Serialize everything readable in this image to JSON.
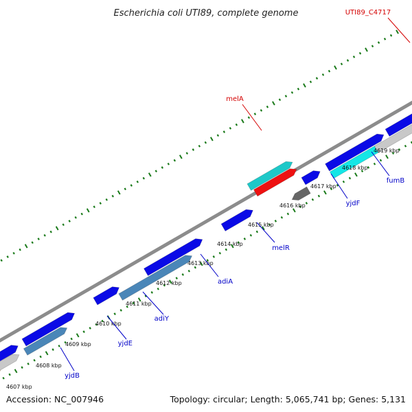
{
  "title": "Escherichia coli UTI89, complete genome",
  "footer": {
    "accession": "Accession: NC_007946",
    "summary": "Topology: circular; Length: 5,065,741 bp; Genes: 5,131"
  },
  "colors": {
    "backbone": "#8c8c8c",
    "tick": "#1a7a1a",
    "gene_blue": "#0a0ae6",
    "gene_steel": "#4a86b8",
    "gene_cyan": "#14e6e6",
    "gene_teal": "#1ec8c8",
    "gene_red": "#ee1111",
    "gene_gray": "#c8c8c8",
    "gene_dark": "#666666",
    "gene_orange": "#f08c14",
    "gene_green": "#2ec82e",
    "label_blue": "#0000c8",
    "label_red": "#d40000"
  },
  "kbp_labels": [
    "4607 kbp",
    "4608 kbp",
    "4609 kbp",
    "4610 kbp",
    "4611 kbp",
    "4612 kbp",
    "4613 kbp",
    "4614 kbp",
    "4615 kbp",
    "4616 kbp",
    "4617 kbp",
    "4618 kbp",
    "4619 kbp"
  ],
  "gene_labels": [
    {
      "text": "yjdB",
      "color": "label_blue"
    },
    {
      "text": "yjdE",
      "color": "label_blue"
    },
    {
      "text": "adiY",
      "color": "label_blue"
    },
    {
      "text": "adiA",
      "color": "label_blue"
    },
    {
      "text": "melR",
      "color": "label_blue"
    },
    {
      "text": "yjdF",
      "color": "label_blue"
    },
    {
      "text": "fumB",
      "color": "label_blue"
    },
    {
      "text": "melA",
      "color": "label_red"
    },
    {
      "text": "UTI89_C4717",
      "color": "label_red"
    }
  ]
}
